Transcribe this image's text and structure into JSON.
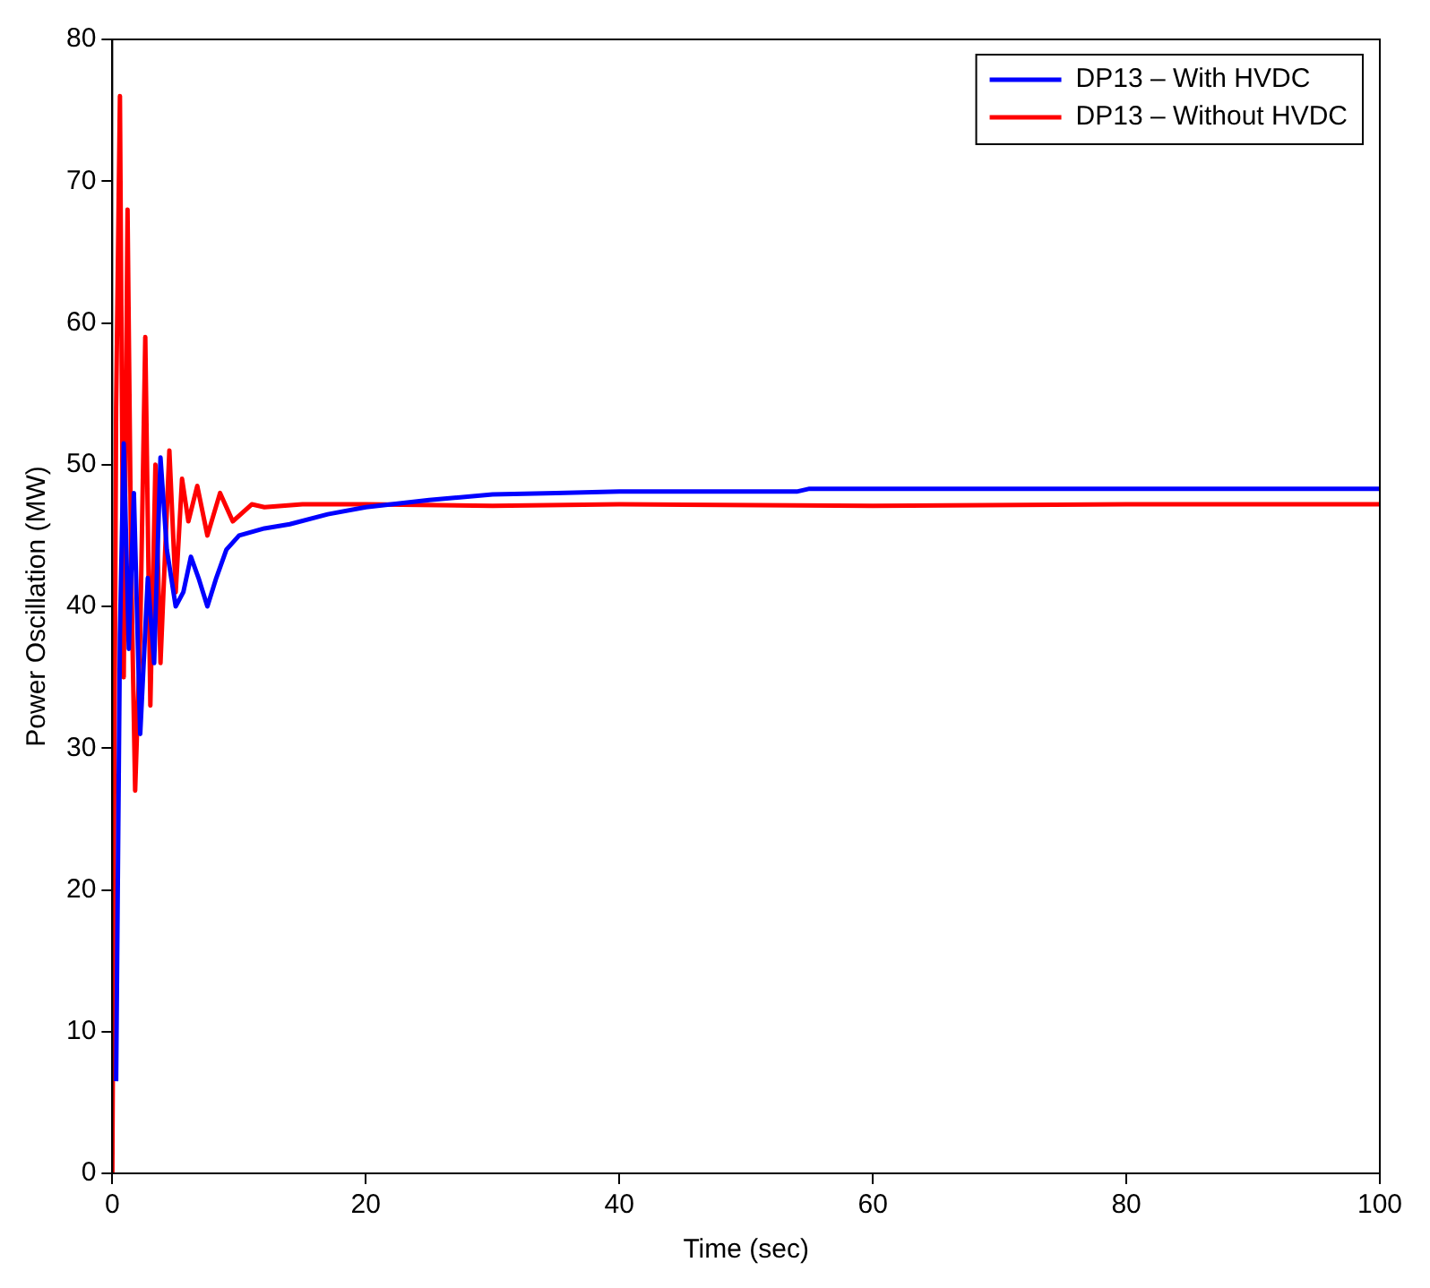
{
  "chart_data": {
    "type": "line",
    "xlabel": "Time (sec)",
    "ylabel": "Power Oscillation (MW)",
    "xlim": [
      0,
      100
    ],
    "ylim": [
      0,
      80
    ],
    "xticks": [
      0,
      20,
      40,
      60,
      80,
      100
    ],
    "yticks": [
      0,
      10,
      20,
      30,
      40,
      50,
      60,
      70,
      80
    ],
    "grid": false,
    "legend": "top right",
    "marker": "none",
    "line_style": "solid",
    "series": [
      {
        "name": "DP13 – With HVDC",
        "color": "#0000ff",
        "x": [
          0.3,
          0.6,
          0.9,
          1.3,
          1.7,
          2.2,
          2.8,
          3.3,
          3.8,
          4.3,
          5,
          5.6,
          6.2,
          6.8,
          7.5,
          8.2,
          9,
          10,
          12,
          14,
          17,
          20,
          25,
          30,
          35,
          40,
          50,
          54,
          55,
          70,
          100
        ],
        "values": [
          6.5,
          38,
          51.5,
          37,
          48,
          31,
          42,
          36,
          50.5,
          44,
          40,
          41,
          43.5,
          42,
          40,
          42,
          44,
          45,
          45.5,
          45.8,
          46.5,
          47,
          47.5,
          47.9,
          48,
          48.1,
          48.1,
          48.1,
          48.3,
          48.3,
          48.3
        ]
      },
      {
        "name": "DP13 – Without HVDC",
        "color": "#ff0000",
        "x": [
          0,
          0.3,
          0.6,
          0.9,
          1.2,
          1.5,
          1.8,
          2.2,
          2.6,
          3,
          3.4,
          3.8,
          4.5,
          5,
          5.5,
          6,
          6.7,
          7.5,
          8.5,
          9.5,
          11,
          12,
          15,
          20,
          30,
          40,
          60,
          80,
          100
        ],
        "values": [
          0,
          54,
          76,
          35,
          68,
          42,
          27,
          38,
          59,
          33,
          50,
          36,
          51,
          41,
          49,
          46,
          48.5,
          45,
          48,
          46,
          47.2,
          47,
          47.2,
          47.2,
          47.1,
          47.2,
          47.1,
          47.2,
          47.2
        ]
      }
    ]
  }
}
